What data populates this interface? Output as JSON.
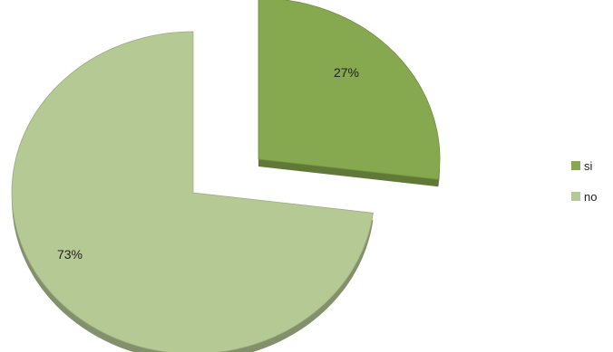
{
  "chart_data": {
    "type": "pie",
    "title": "",
    "legend_position": "right",
    "slices": [
      {
        "label": "si",
        "value": 27,
        "value_label": "27%",
        "color": "#86a84f",
        "exploded": true
      },
      {
        "label": "no",
        "value": 73,
        "value_label": "73%",
        "color": "#b5c994",
        "exploded": false
      }
    ]
  }
}
